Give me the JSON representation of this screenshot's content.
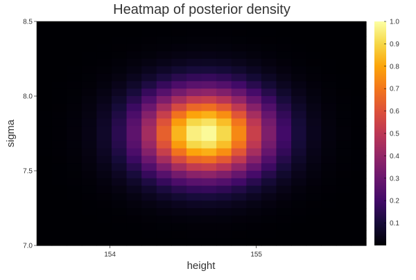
{
  "chart_data": {
    "type": "heatmap",
    "title": "Heatmap of posterior density",
    "xlabel": "height",
    "ylabel": "sigma",
    "xlim": [
      153.5,
      155.75
    ],
    "ylim": [
      7.0,
      8.5
    ],
    "x_ticks": [
      {
        "value": 154,
        "label": "154"
      },
      {
        "value": 155,
        "label": "155"
      }
    ],
    "y_ticks": [
      {
        "value": 7.0,
        "label": "7.0"
      },
      {
        "value": 7.5,
        "label": "7.5"
      },
      {
        "value": 8.0,
        "label": "8.0"
      },
      {
        "value": 8.5,
        "label": "8.5"
      }
    ],
    "grid": {
      "x_cells": 22,
      "y_cells": 30
    },
    "density_peak": {
      "x": 154.65,
      "y": 7.75
    },
    "density_spread": {
      "x_sd": 0.3,
      "y_sd": 0.2
    },
    "colorbar": {
      "colormap": "inferno",
      "min": 0,
      "max": 1,
      "ticks": [
        {
          "value": 0.1,
          "label": "0.1"
        },
        {
          "value": 0.2,
          "label": "0.2"
        },
        {
          "value": 0.3,
          "label": "0.3"
        },
        {
          "value": 0.4,
          "label": "0.4"
        },
        {
          "value": 0.5,
          "label": "0.5"
        },
        {
          "value": 0.6,
          "label": "0.6"
        },
        {
          "value": 0.7,
          "label": "0.7"
        },
        {
          "value": 0.8,
          "label": "0.8"
        },
        {
          "value": 0.9,
          "label": "0.9"
        },
        {
          "value": 1.0,
          "label": "1.0"
        }
      ]
    },
    "grid_lines": false,
    "legend": "none"
  }
}
